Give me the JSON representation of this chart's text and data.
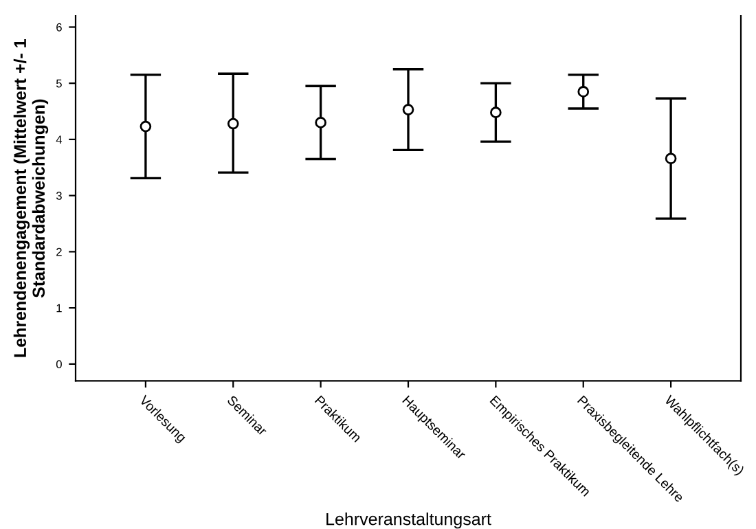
{
  "chart_data": {
    "type": "scatter",
    "xlabel": "Lehrveranstaltungsart",
    "ylabel": "Lehrendenengagement (Mittelwert +/- 1\nStandardabweichungen)",
    "categories": [
      "Vorlesung",
      "Seminar",
      "Praktikum",
      "Hauptseminar",
      "Empirisches Praktikum",
      "Praxisbegleitende Lehre",
      "Wahlpflichtfach(s)"
    ],
    "series": [
      {
        "color": "#000000",
        "values": [
          4.23,
          4.28,
          4.3,
          4.53,
          4.48,
          4.85,
          3.66
        ],
        "errors": [
          0.92,
          [
            3.41,
            5.17
          ],
          0.65,
          0.72,
          0.52,
          0.3,
          1.07
        ]
      }
    ],
    "ylim": [
      -0.3,
      6.2
    ],
    "yticks": [
      0,
      1,
      2,
      3,
      4,
      5,
      6
    ],
    "marker": "circle",
    "grid": false
  }
}
